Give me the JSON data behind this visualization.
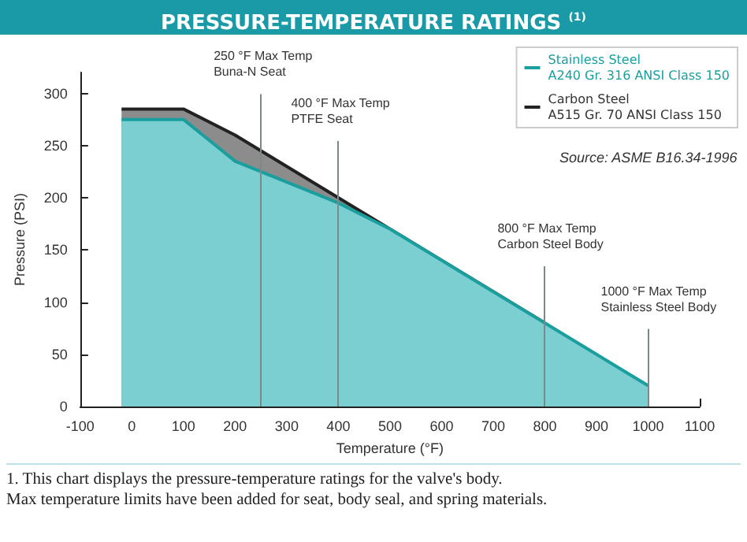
{
  "chart_data": {
    "type": "area",
    "title": "PRESSURE-TEMPERATURE RATINGS $^{(1)}$",
    "xlabel": "Temperature (°F)",
    "ylabel": "Pressure (PSI)",
    "series": [
      {
        "name": "Carbon Steel\nA515 Gr. 70 ANSI Class 150",
        "color": "#222222",
        "x": [
          -20,
          100,
          200,
          300,
          400,
          500,
          600,
          700,
          800
        ],
        "values": [
          285,
          285,
          260,
          230,
          200,
          170,
          140,
          110,
          80
        ]
      },
      {
        "name": "Stainless Steel\nA240 Gr. 316 ANSI Class 150",
        "color": "#1a9e9e",
        "x": [
          -20,
          100,
          200,
          300,
          400,
          500,
          600,
          700,
          800,
          900,
          1000
        ],
        "values": [
          275,
          275,
          235,
          215,
          195,
          170,
          140,
          110,
          80,
          50,
          20
        ]
      }
    ],
    "xlim": [
      -100,
      1100
    ],
    "xticks": [
      -100,
      0,
      100,
      200,
      300,
      400,
      500,
      600,
      700,
      800,
      900,
      1000,
      1100
    ],
    "ylim": [
      0,
      320
    ],
    "yticks": [
      0,
      50,
      100,
      150,
      200,
      250,
      300
    ],
    "ref_lines": [
      {
        "axis": "x",
        "value": 250,
        "label": "250 °F Max Temp\nBuna-N Seat"
      },
      {
        "axis": "x",
        "value": 400,
        "label": "400 °F Max Temp\nPTFE Seat"
      },
      {
        "axis": "x",
        "value": 800,
        "label": "800 °F Max Temp\nCarbon Steel Body"
      },
      {
        "axis": "x",
        "value": 1000,
        "label": "1000 °F Max Temp\nStainless Steel Body"
      }
    ],
    "annotations": [
      "Source: ASME B16.34-1996",
      "1.  This chart displays the pressure-temperature ratings for the valve's body.",
      "Max temperature limits have been added for seat, body seal, and spring materials."
    ],
    "legend": "top right",
    "grid": false,
    "marker": "none"
  }
}
